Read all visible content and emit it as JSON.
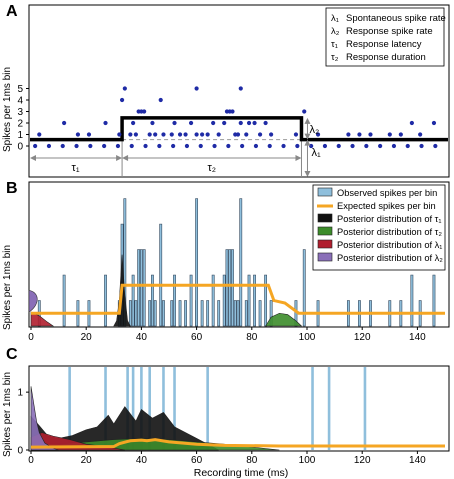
{
  "chart_data": [
    {
      "panel": "A",
      "type": "scatter",
      "ylabel": "Spikes per 1ms bin",
      "xlim": [
        0,
        150
      ],
      "ylim": [
        -0.3,
        5.8
      ],
      "yticks": [
        0,
        1,
        2,
        3,
        4,
        5
      ],
      "grid": false,
      "legend_position": "top-right",
      "legend": [
        {
          "symbol": "λ₁",
          "text": "Spontaneous spike rate"
        },
        {
          "symbol": "λ₂",
          "text": "Response spike rate"
        },
        {
          "symbol": "τ₁",
          "text": "Response latency"
        },
        {
          "symbol": "τ₂",
          "text": "Response duration"
        }
      ],
      "points": [
        [
          3,
          1
        ],
        [
          12,
          2
        ],
        [
          17,
          1
        ],
        [
          21,
          1
        ],
        [
          27,
          2
        ],
        [
          32,
          1
        ],
        [
          33,
          4
        ],
        [
          34,
          5
        ],
        [
          36,
          1
        ],
        [
          37,
          2
        ],
        [
          38,
          1
        ],
        [
          39,
          3
        ],
        [
          40,
          3
        ],
        [
          41,
          3
        ],
        [
          43,
          1
        ],
        [
          44,
          2
        ],
        [
          45,
          1
        ],
        [
          47,
          4
        ],
        [
          48,
          1
        ],
        [
          51,
          1
        ],
        [
          52,
          2
        ],
        [
          54,
          1
        ],
        [
          56,
          1
        ],
        [
          58,
          2
        ],
        [
          60,
          1
        ],
        [
          62,
          1
        ],
        [
          64,
          1
        ],
        [
          66,
          2
        ],
        [
          68,
          1
        ],
        [
          70,
          2
        ],
        [
          72,
          3
        ],
        [
          73,
          3
        ],
        [
          75,
          1
        ],
        [
          76,
          2
        ],
        [
          78,
          1
        ],
        [
          79,
          2
        ],
        [
          81,
          2
        ],
        [
          83,
          1
        ],
        [
          85,
          2
        ],
        [
          87,
          1
        ],
        [
          96,
          1
        ],
        [
          99,
          3
        ],
        [
          104,
          1
        ],
        [
          115,
          1
        ],
        [
          119,
          1
        ],
        [
          123,
          1
        ],
        [
          130,
          1
        ],
        [
          134,
          1
        ],
        [
          138,
          2
        ],
        [
          141,
          1
        ],
        [
          146,
          2
        ],
        [
          60,
          5
        ],
        [
          71,
          3
        ],
        [
          74,
          1
        ],
        [
          76,
          5
        ]
      ],
      "step_levels": {
        "lambda1": 0.55,
        "lambda2": 2.45,
        "tau1_ms": 33,
        "tau2_end_ms": 98
      },
      "annotations": {
        "tau1": "τ₁",
        "tau2": "τ₂",
        "lambda1": "λ₁",
        "lambda2": "λ₂"
      }
    },
    {
      "panel": "B",
      "type": "bar",
      "ylabel": "Spikes per 1ms bin",
      "xlim": [
        0,
        150
      ],
      "xticks": [
        0,
        20,
        40,
        60,
        80,
        100,
        120,
        140
      ],
      "ylim": [
        0,
        5.3
      ],
      "legend_position": "top-right",
      "legend": [
        {
          "name": "Observed spikes per bin",
          "color": "#8fbfdc"
        },
        {
          "name": "Expected spikes per bin",
          "color": "#f5a623"
        },
        {
          "name": "Posterior distribution of τ₁",
          "color": "#111111"
        },
        {
          "name": "Posterior distribution of τ₂",
          "color": "#3c8c2a"
        },
        {
          "name": "Posterior distribution of λ₁",
          "color": "#b01e2e"
        },
        {
          "name": "Posterior distribution of λ₂",
          "color": "#8a6fb8"
        }
      ],
      "bars": [
        [
          3,
          1
        ],
        [
          12,
          2
        ],
        [
          17,
          1
        ],
        [
          21,
          1
        ],
        [
          27,
          2
        ],
        [
          32,
          1
        ],
        [
          33,
          4
        ],
        [
          34,
          5
        ],
        [
          36,
          1
        ],
        [
          37,
          2
        ],
        [
          38,
          1
        ],
        [
          39,
          3
        ],
        [
          40,
          3
        ],
        [
          41,
          3
        ],
        [
          43,
          1
        ],
        [
          44,
          2
        ],
        [
          45,
          1
        ],
        [
          47,
          4
        ],
        [
          48,
          1
        ],
        [
          51,
          1
        ],
        [
          52,
          2
        ],
        [
          54,
          1
        ],
        [
          56,
          1
        ],
        [
          58,
          2
        ],
        [
          60,
          1
        ],
        [
          62,
          1
        ],
        [
          64,
          1
        ],
        [
          66,
          2
        ],
        [
          68,
          1
        ],
        [
          70,
          2
        ],
        [
          72,
          3
        ],
        [
          73,
          3
        ],
        [
          75,
          1
        ],
        [
          76,
          5
        ],
        [
          78,
          1
        ],
        [
          79,
          2
        ],
        [
          81,
          2
        ],
        [
          83,
          1
        ],
        [
          85,
          2
        ],
        [
          87,
          1
        ],
        [
          96,
          1
        ],
        [
          99,
          3
        ],
        [
          104,
          1
        ],
        [
          115,
          1
        ],
        [
          119,
          1
        ],
        [
          123,
          1
        ],
        [
          130,
          1
        ],
        [
          134,
          1
        ],
        [
          138,
          2
        ],
        [
          141,
          1
        ],
        [
          146,
          2
        ],
        [
          60,
          5
        ],
        [
          71,
          3
        ],
        [
          74,
          1
        ]
      ],
      "expected_line": [
        [
          0,
          0.5
        ],
        [
          32,
          0.5
        ],
        [
          33,
          1.6
        ],
        [
          86,
          1.6
        ],
        [
          88,
          1.0
        ],
        [
          92,
          0.9
        ],
        [
          97,
          0.5
        ],
        [
          150,
          0.5
        ]
      ],
      "tau1_posterior": [
        [
          30,
          0
        ],
        [
          31,
          0.2
        ],
        [
          32,
          1.0
        ],
        [
          33,
          2.8
        ],
        [
          34,
          1.2
        ],
        [
          35,
          0.2
        ],
        [
          36,
          0
        ]
      ],
      "tau2_posterior": [
        [
          85,
          0
        ],
        [
          87,
          0.35
        ],
        [
          90,
          0.5
        ],
        [
          93,
          0.45
        ],
        [
          96,
          0.2
        ],
        [
          98,
          0
        ]
      ],
      "lambda1_posterior": [
        [
          0,
          0.55
        ],
        [
          3,
          0.4
        ],
        [
          6,
          0.15
        ],
        [
          8,
          0
        ]
      ],
      "lambda2_posterior": [
        [
          0,
          1.6
        ],
        [
          2,
          1.4
        ],
        [
          4,
          0.6
        ],
        [
          5,
          0.1
        ],
        [
          6,
          0
        ]
      ]
    },
    {
      "panel": "C",
      "type": "area",
      "ylabel": "Spikes per 1ms bin",
      "xlabel": "Recording time (ms)",
      "xlim": [
        0,
        150
      ],
      "xticks": [
        0,
        20,
        40,
        60,
        80,
        100,
        120,
        140
      ],
      "ylim": [
        0,
        1.4
      ],
      "yticks": [
        0,
        1
      ],
      "observed_spike_times": [
        14,
        27,
        35,
        37,
        40,
        43,
        48,
        52,
        64,
        102,
        108,
        121
      ],
      "expected_line": [
        [
          0,
          0.05
        ],
        [
          30,
          0.06
        ],
        [
          32,
          0.11
        ],
        [
          36,
          0.16
        ],
        [
          40,
          0.17
        ],
        [
          42,
          0.16
        ],
        [
          45,
          0.18
        ],
        [
          50,
          0.14
        ],
        [
          60,
          0.1
        ],
        [
          70,
          0.08
        ],
        [
          90,
          0.07
        ],
        [
          150,
          0.07
        ]
      ],
      "tau1_posterior": [
        [
          0,
          0.58
        ],
        [
          3,
          0.42
        ],
        [
          6,
          0.25
        ],
        [
          10,
          0.2
        ],
        [
          15,
          0.25
        ],
        [
          20,
          0.35
        ],
        [
          24,
          0.4
        ],
        [
          28,
          0.6
        ],
        [
          30,
          0.45
        ],
        [
          34,
          0.75
        ],
        [
          38,
          0.5
        ],
        [
          40,
          0.7
        ],
        [
          44,
          0.55
        ],
        [
          48,
          0.65
        ],
        [
          52,
          0.4
        ],
        [
          56,
          0.3
        ],
        [
          60,
          0.2
        ],
        [
          64,
          0.1
        ],
        [
          68,
          0
        ]
      ],
      "tau2_posterior": [
        [
          0,
          0.12
        ],
        [
          10,
          0.1
        ],
        [
          20,
          0.14
        ],
        [
          30,
          0.18
        ],
        [
          40,
          0.2
        ],
        [
          50,
          0.18
        ],
        [
          60,
          0.14
        ],
        [
          70,
          0.1
        ],
        [
          80,
          0.05
        ],
        [
          90,
          0
        ]
      ],
      "lambda1_posterior": [
        [
          0,
          0.22
        ],
        [
          4,
          0.3
        ],
        [
          8,
          0.24
        ],
        [
          14,
          0.18
        ],
        [
          20,
          0.1
        ],
        [
          28,
          0.05
        ],
        [
          34,
          0
        ]
      ],
      "lambda2_posterior": [
        [
          0,
          1.1
        ],
        [
          1,
          0.8
        ],
        [
          2,
          0.5
        ],
        [
          3,
          0.3
        ],
        [
          5,
          0.12
        ],
        [
          8,
          0.03
        ],
        [
          10,
          0
        ]
      ]
    }
  ]
}
